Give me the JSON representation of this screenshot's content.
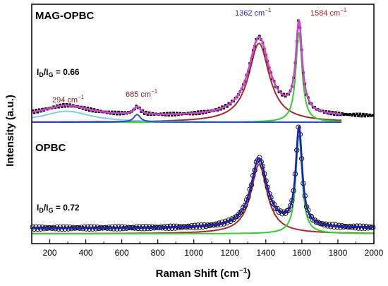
{
  "chart_data": {
    "type": "line",
    "xlabel": "Raman Shift (cm",
    "xlabel_sup": "−1",
    "xlabel_tail": ")",
    "ylabel": "Intensity (a.u.)",
    "xlim": [
      100,
      2000
    ],
    "x_ticks": [
      200,
      400,
      600,
      800,
      1000,
      1200,
      1400,
      1600,
      1800,
      2000
    ],
    "x_tick_labels": [
      "200",
      "400",
      "600",
      "800",
      "1000",
      "1200",
      "1400",
      "1600",
      "1800",
      "2000"
    ],
    "grid": false,
    "colors": {
      "data": "#000000",
      "envelope_mag": "#cc44cc",
      "envelope_opbc": "#1f1fbf",
      "d_band": "#a52a2a",
      "g_band": "#33cc33",
      "low_band": "#88c8f0",
      "mid_band": "#2a52be",
      "label_blue": "#2a2aa8",
      "label_red": "#b22222"
    },
    "panels": [
      {
        "id": "MAG-OPBC",
        "name": "MAG-OPBC",
        "ratio_prefix": "I",
        "ratio_sub_d": "D",
        "ratio_sep": "/I",
        "ratio_sub_g": "G",
        "ratio_suffix": " = 0.66",
        "id_ig": 0.66,
        "peaks": [
          {
            "position": 294,
            "label": "294 cm",
            "sup": "−1",
            "color": "label_red"
          },
          {
            "position": 685,
            "label": "685 cm",
            "sup": "−1",
            "color": "label_red"
          },
          {
            "position": 1362,
            "label": "1362 cm",
            "sup": "−1",
            "color": "label_blue"
          },
          {
            "position": 1584,
            "label": "1584 cm",
            "sup": "−1",
            "color": "label_red"
          }
        ],
        "baseline": 0.05,
        "components": [
          {
            "name": "D band",
            "center": 1362,
            "height": 0.72,
            "width": 140,
            "color": "d_band"
          },
          {
            "name": "G band",
            "center": 1584,
            "height": 0.82,
            "width": 42,
            "color": "g_band"
          },
          {
            "name": "low band",
            "center": 294,
            "height": 0.1,
            "width": 320,
            "color": "low_band"
          },
          {
            "name": "mid band",
            "center": 685,
            "height": 0.07,
            "width": 45,
            "color": "mid_band"
          }
        ]
      },
      {
        "id": "OPBC",
        "name": "OPBC",
        "ratio_prefix": "I",
        "ratio_sub_d": "D",
        "ratio_sep": "/I",
        "ratio_sub_g": "G",
        "ratio_suffix": " = 0.72",
        "id_ig": 0.72,
        "baseline": 0.05,
        "components": [
          {
            "name": "D band",
            "center": 1362,
            "height": 0.62,
            "width": 110,
            "color": "d_band"
          },
          {
            "name": "G band",
            "center": 1584,
            "height": 0.88,
            "width": 42,
            "color": "g_band"
          }
        ]
      }
    ]
  }
}
